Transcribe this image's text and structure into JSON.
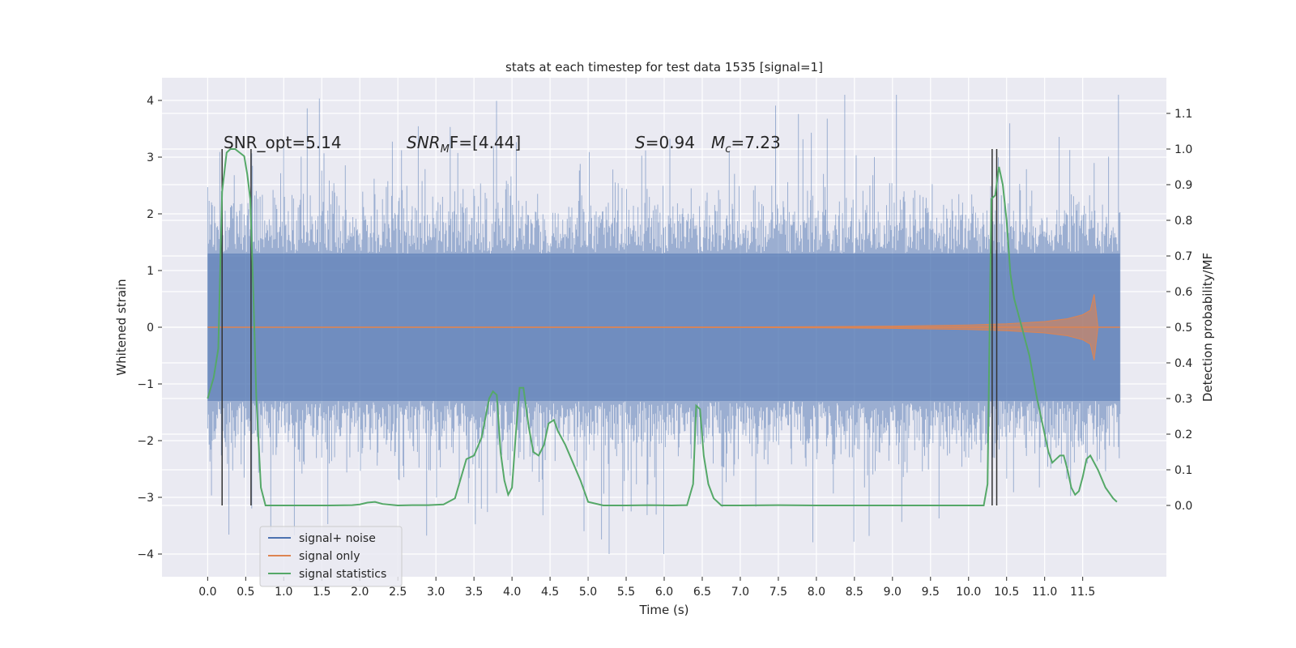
{
  "chart_data": {
    "type": "line",
    "title": "stats at each timestep for test data 1535 [signal=1]",
    "xlabel": "Time (s)",
    "ylabel": "Whitened strain",
    "ylabel_right": "Detection probability/MF",
    "xlim": [
      -0.6,
      12.6
    ],
    "ylim": [
      -4.4,
      4.4
    ],
    "ylim_right": [
      -0.2,
      1.2
    ],
    "x_ticks": [
      "0.0",
      "0.5",
      "1.0",
      "1.5",
      "2.0",
      "2.5",
      "3.0",
      "3.5",
      "4.0",
      "4.5",
      "5.0",
      "5.5",
      "6.0",
      "6.5",
      "7.0",
      "7.5",
      "8.0",
      "8.5",
      "9.0",
      "9.5",
      "10.0",
      "10.5",
      "11.0",
      "11.5"
    ],
    "y_ticks": [
      "4",
      "3",
      "2",
      "1",
      "0",
      "−1",
      "−2",
      "−3",
      "−4"
    ],
    "y_right_ticks": [
      "1.1",
      "1.0",
      "0.9",
      "0.8",
      "0.7",
      "0.6",
      "0.5",
      "0.4",
      "0.3",
      "0.2",
      "0.1",
      "0.0"
    ],
    "grid": true,
    "legend_position": "lower-left",
    "colors": {
      "signal_noise": "#4c72b0",
      "signal_only": "#dd8452",
      "signal_statistics": "#55a868",
      "markers": "#333333",
      "background": "#eaeaf2"
    },
    "annotations": {
      "snr_opt": "SNR_opt=5.14",
      "snr_mf_prefix": "SNR",
      "snr_mf_sub": "M",
      "snr_mf_suffix": "F=[4.44]",
      "s_symbol": "S",
      "s_value": "=0.94",
      "mc_symbol": "M",
      "mc_sub": "c",
      "mc_value": "=7.23"
    },
    "series": [
      {
        "name": "signal+ noise",
        "x_range": [
          0.0,
          11.99
        ],
        "typical_band": [
          -1.3,
          1.3
        ],
        "peak_extent": [
          -4.0,
          4.1
        ]
      },
      {
        "name": "signal only",
        "x": [
          0.0,
          7.0,
          8.0,
          9.0,
          10.0,
          10.5,
          11.0,
          11.3,
          11.5,
          11.6,
          11.65,
          11.7,
          11.99
        ],
        "envelope": [
          0.0,
          0.005,
          0.01,
          0.02,
          0.04,
          0.06,
          0.1,
          0.15,
          0.22,
          0.3,
          0.58,
          0.0,
          0.0
        ]
      },
      {
        "name": "signal statistics",
        "x": [
          0.0,
          0.08,
          0.14,
          0.19,
          0.25,
          0.3,
          0.36,
          0.42,
          0.48,
          0.52,
          0.56,
          0.6,
          0.64,
          0.7,
          0.76,
          0.82,
          1.0,
          1.3,
          1.6,
          1.9,
          2.0,
          2.1,
          2.2,
          2.3,
          2.5,
          2.7,
          2.9,
          3.1,
          3.25,
          3.4,
          3.5,
          3.6,
          3.7,
          3.75,
          3.8,
          3.85,
          3.9,
          3.95,
          4.0,
          4.05,
          4.1,
          4.15,
          4.22,
          4.28,
          4.35,
          4.42,
          4.48,
          4.55,
          4.6,
          4.7,
          4.8,
          4.9,
          5.0,
          5.2,
          5.5,
          5.8,
          6.1,
          6.3,
          6.38,
          6.42,
          6.47,
          6.52,
          6.58,
          6.65,
          6.75,
          6.85,
          7.0,
          7.5,
          8.0,
          8.5,
          9.0,
          9.5,
          10.0,
          10.2,
          10.25,
          10.3,
          10.35,
          10.4,
          10.45,
          10.5,
          10.55,
          10.6,
          10.7,
          10.8,
          10.9,
          11.0,
          11.05,
          11.1,
          11.15,
          11.2,
          11.25,
          11.3,
          11.35,
          11.4,
          11.45,
          11.5,
          11.55,
          11.6,
          11.7,
          11.8,
          11.9,
          11.95
        ],
        "y": [
          0.3,
          0.36,
          0.44,
          0.88,
          0.99,
          1.0,
          1.0,
          0.99,
          0.98,
          0.93,
          0.86,
          0.6,
          0.3,
          0.05,
          0.0,
          0.0,
          0.0,
          0.0,
          0.0,
          0.001,
          0.003,
          0.008,
          0.01,
          0.004,
          0.0,
          0.001,
          0.001,
          0.003,
          0.02,
          0.13,
          0.14,
          0.19,
          0.3,
          0.32,
          0.31,
          0.15,
          0.07,
          0.03,
          0.05,
          0.2,
          0.33,
          0.33,
          0.22,
          0.15,
          0.14,
          0.17,
          0.23,
          0.24,
          0.21,
          0.17,
          0.12,
          0.07,
          0.01,
          0.0,
          0.0,
          0.001,
          0.0,
          0.001,
          0.06,
          0.28,
          0.27,
          0.14,
          0.06,
          0.02,
          0.0,
          0.0,
          0.0,
          0.001,
          0.0,
          0.0,
          0.0,
          0.0,
          0.0,
          0.0,
          0.06,
          0.86,
          0.87,
          0.95,
          0.9,
          0.8,
          0.65,
          0.58,
          0.5,
          0.42,
          0.3,
          0.2,
          0.15,
          0.12,
          0.13,
          0.14,
          0.14,
          0.1,
          0.05,
          0.03,
          0.04,
          0.08,
          0.13,
          0.14,
          0.1,
          0.05,
          0.02,
          0.01
        ]
      }
    ],
    "marker_lines_x": [
      0.19,
      0.57,
      10.31,
      10.37
    ]
  }
}
